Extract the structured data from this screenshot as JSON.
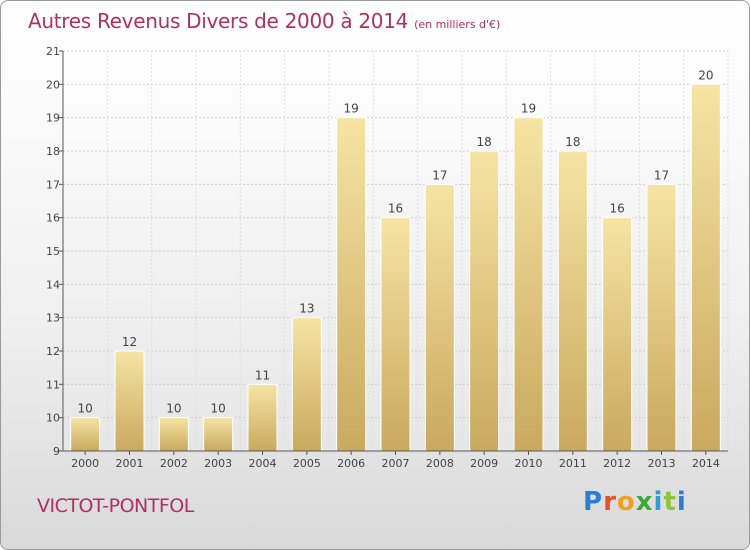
{
  "header": {
    "title": "Autres Revenus Divers de 2000 à 2014",
    "subtitle": "(en milliers d'€)"
  },
  "footer": {
    "city": "VICTOT-PONTFOL",
    "logo": [
      "P",
      "r",
      "o",
      "x",
      "i",
      "t",
      "i"
    ]
  },
  "colors": {
    "title": "#b03060",
    "bar_light": "#f6e4a4",
    "bar_dark": "#c9a95e"
  },
  "chart_data": {
    "type": "bar",
    "categories": [
      "2000",
      "2001",
      "2002",
      "2003",
      "2004",
      "2005",
      "2006",
      "2007",
      "2008",
      "2009",
      "2010",
      "2011",
      "2012",
      "2013",
      "2014"
    ],
    "values": [
      10,
      12,
      10,
      10,
      11,
      13,
      19,
      16,
      17,
      18,
      19,
      18,
      16,
      17,
      20
    ],
    "title": "Autres Revenus Divers de 2000 à 2014",
    "subtitle": "(en milliers d'€)",
    "xlabel": "",
    "ylabel": "",
    "ylim": [
      9,
      21
    ],
    "yticks": [
      9,
      10,
      11,
      12,
      13,
      14,
      15,
      16,
      17,
      18,
      19,
      20,
      21
    ],
    "grid": true,
    "data_labels": true
  }
}
